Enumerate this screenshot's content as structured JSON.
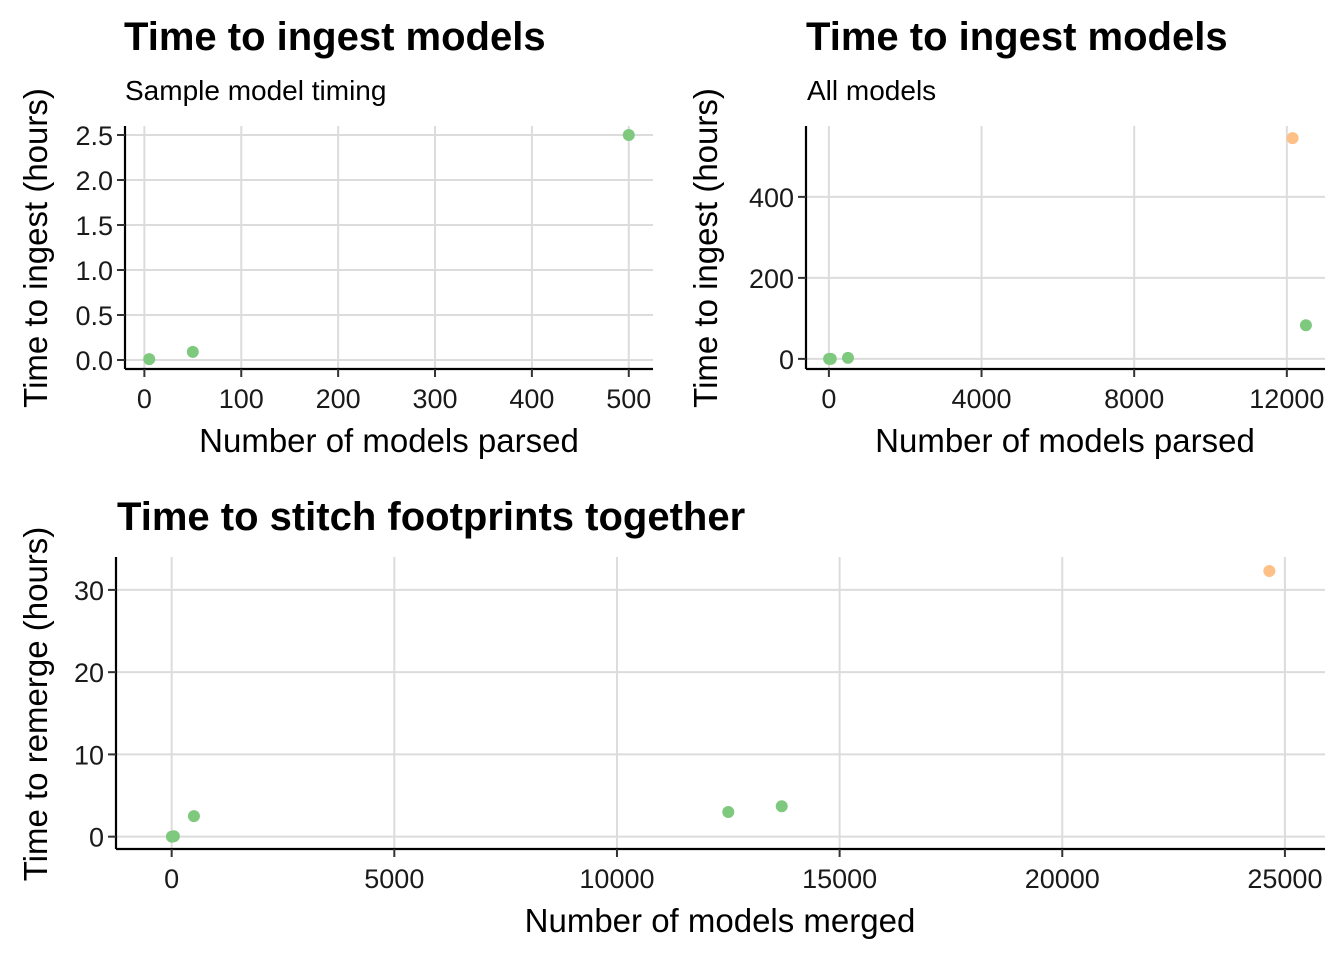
{
  "chart_data": [
    {
      "type": "scatter",
      "title": "Time to ingest models",
      "subtitle": "Sample model timing",
      "xlabel": "Number of models parsed",
      "ylabel": "Time to ingest (hours)",
      "xlim": [
        -20,
        525
      ],
      "ylim": [
        -0.1,
        2.6
      ],
      "xticks": [
        0,
        100,
        200,
        300,
        400,
        500
      ],
      "yticks": [
        0.0,
        0.5,
        1.0,
        1.5,
        2.0,
        2.5
      ],
      "ytick_labels": [
        "0.0",
        "0.5",
        "1.0",
        "1.5",
        "2.0",
        "2.5"
      ],
      "grid": true,
      "points": [
        {
          "x": 5,
          "y": 0.01,
          "color": "#7fc97f"
        },
        {
          "x": 50,
          "y": 0.09,
          "color": "#7fc97f"
        },
        {
          "x": 500,
          "y": 2.5,
          "color": "#7fc97f"
        }
      ]
    },
    {
      "type": "scatter",
      "title": "Time to ingest models",
      "subtitle": "All models",
      "xlabel": "Number of models parsed",
      "ylabel": "Time to ingest (hours)",
      "xlim": [
        -600,
        13000
      ],
      "ylim": [
        -25,
        575
      ],
      "xticks": [
        0,
        4000,
        8000,
        12000
      ],
      "yticks": [
        0,
        200,
        400
      ],
      "ytick_labels": [
        "0",
        "200",
        "400"
      ],
      "grid": true,
      "points": [
        {
          "x": 5,
          "y": 0.01,
          "color": "#7fc97f"
        },
        {
          "x": 50,
          "y": 0.09,
          "color": "#7fc97f"
        },
        {
          "x": 500,
          "y": 2.5,
          "color": "#7fc97f"
        },
        {
          "x": 12150,
          "y": 545,
          "color": "#fdc086"
        },
        {
          "x": 12500,
          "y": 83,
          "color": "#7fc97f"
        }
      ]
    },
    {
      "type": "scatter",
      "title": "Time to stitch footprints together",
      "subtitle": "",
      "xlabel": "Number of models merged",
      "ylabel": "Time to remerge (hours)",
      "xlim": [
        -1250,
        25900
      ],
      "ylim": [
        -1.5,
        34
      ],
      "xticks": [
        0,
        5000,
        10000,
        15000,
        20000,
        25000
      ],
      "yticks": [
        0,
        10,
        20,
        30
      ],
      "ytick_labels": [
        "0",
        "10",
        "20",
        "30"
      ],
      "grid": true,
      "points": [
        {
          "x": 5,
          "y": 0.0,
          "color": "#7fc97f"
        },
        {
          "x": 50,
          "y": 0.05,
          "color": "#7fc97f"
        },
        {
          "x": 500,
          "y": 2.5,
          "color": "#7fc97f"
        },
        {
          "x": 12500,
          "y": 3.0,
          "color": "#7fc97f"
        },
        {
          "x": 13700,
          "y": 3.7,
          "color": "#7fc97f"
        },
        {
          "x": 24650,
          "y": 32.3,
          "color": "#fdc086"
        }
      ]
    }
  ]
}
